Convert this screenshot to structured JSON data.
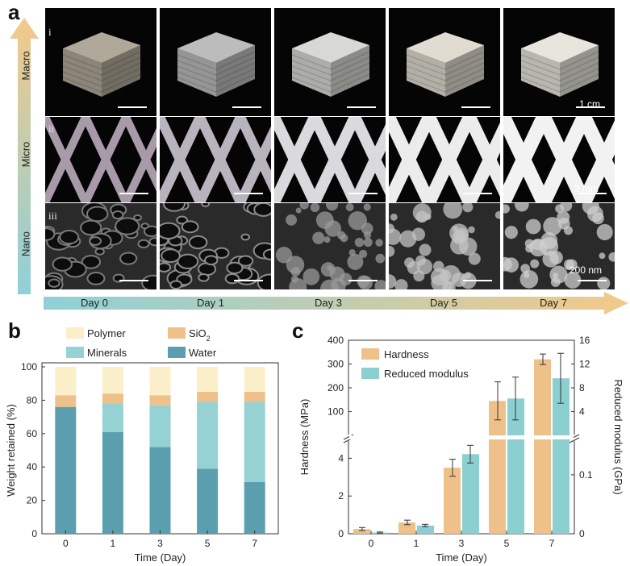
{
  "panels": {
    "a": "a",
    "b": "b",
    "c": "c"
  },
  "panel_a": {
    "scales": [
      "Macro",
      "Micro",
      "Nano"
    ],
    "row_labels": [
      "i",
      "ii",
      "iii"
    ],
    "scale_bars": [
      "1 cm",
      "2 mm",
      "200 nm"
    ],
    "days": [
      "Day 0",
      "Day 1",
      "Day 3",
      "Day 5",
      "Day 7"
    ],
    "colors": {
      "gradient_start": "#8fd0d8",
      "gradient_end": "#f3c98a"
    }
  },
  "chart_data": [
    {
      "type": "bar",
      "stacked": true,
      "categories": [
        "0",
        "1",
        "3",
        "5",
        "7"
      ],
      "xlabel": "Time (Day)",
      "ylabel": "Weight retained (%)",
      "ylim": [
        0,
        100
      ],
      "yticks": [
        "0",
        "20",
        "40",
        "60",
        "80",
        "100"
      ],
      "legend_title_parts": {
        "sio2_base": "SiO",
        "sio2_sub": "2"
      },
      "series": [
        {
          "name": "Water",
          "color": "#5b9fae",
          "values": [
            76,
            61,
            52,
            39,
            31
          ]
        },
        {
          "name": "Minerals",
          "color": "#96d2d4",
          "values": [
            0,
            17,
            25,
            40,
            48
          ]
        },
        {
          "name": "SiO2",
          "color": "#efc18a",
          "values": [
            7,
            6,
            6,
            6,
            6
          ]
        },
        {
          "name": "Polymer",
          "color": "#fbefc9",
          "values": [
            17,
            16,
            17,
            15,
            15
          ]
        }
      ]
    },
    {
      "type": "bar",
      "categories": [
        "0",
        "1",
        "3",
        "5",
        "7"
      ],
      "xlabel": "Time (Day)",
      "ylabel_left": "Hardness (MPa)",
      "ylabel_right": "Reduced modulus (GPa)",
      "left_ticks_lower": [
        "0",
        "2",
        "4"
      ],
      "left_ticks_upper": [
        "100",
        "200",
        "300",
        "400"
      ],
      "right_ticks_lower": [
        "0",
        "0.1"
      ],
      "right_ticks_upper": [
        "4",
        "8",
        "12",
        "16"
      ],
      "broken_axis": true,
      "series": [
        {
          "name": "Hardness",
          "color": "#efc18a",
          "values": [
            0.25,
            0.6,
            3.5,
            145,
            320
          ],
          "errors": [
            0.08,
            0.12,
            0.45,
            80,
            22
          ]
        },
        {
          "name": "Reduced modulus",
          "color": "#8ccfd1",
          "values": [
            0.002,
            0.014,
            0.135,
            6.2,
            9.6
          ],
          "errors": [
            0.001,
            0.002,
            0.015,
            3.6,
            4.2
          ]
        }
      ]
    }
  ]
}
